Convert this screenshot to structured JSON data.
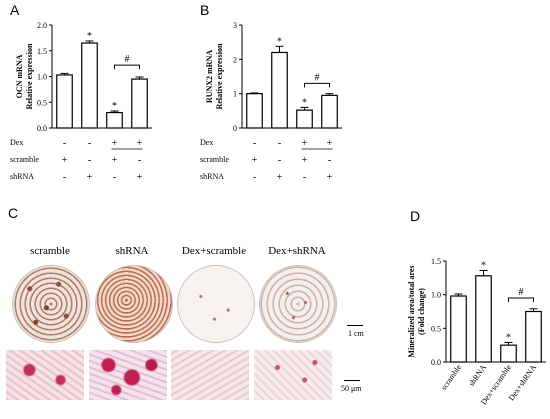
{
  "panels": {
    "a": "A",
    "b": "B",
    "c": "C",
    "d": "D"
  },
  "treatment_rows": [
    {
      "label": "Dex",
      "signs": [
        "-",
        "-",
        "+",
        "+"
      ]
    },
    {
      "label": "scramble",
      "signs": [
        "+",
        "-",
        "+",
        "-"
      ]
    },
    {
      "label": "shRNA",
      "signs": [
        "-",
        "+",
        "-",
        "+"
      ]
    }
  ],
  "photo_labels": [
    "scramble",
    "shRNA",
    "Dex+scramble",
    "Dex+shRNA"
  ],
  "scale_bars": {
    "well": "1 cm",
    "micro": "50 μm"
  },
  "chart_data": [
    {
      "type": "bar",
      "panel": "A",
      "ylabel_lines": [
        "OCN mRNA",
        "Relative expression"
      ],
      "ylim": [
        0,
        2.0
      ],
      "yticks": [
        "0.0",
        "0.5",
        "1.0",
        "1.5",
        "2.0"
      ],
      "values": [
        1.03,
        1.65,
        0.3,
        0.95
      ],
      "errors": [
        0.03,
        0.04,
        0.03,
        0.04
      ],
      "bar_colors": [
        "#ffffff",
        "#ffffff",
        "#ffffff",
        "#ffffff"
      ],
      "star_labels": [
        "",
        "*",
        "*",
        ""
      ],
      "bracket": {
        "from": 2,
        "to": 3,
        "label": "#",
        "y": 1.22
      }
    },
    {
      "type": "bar",
      "panel": "B",
      "ylabel_lines": [
        "RUNX2  mRNA",
        "Relative expression"
      ],
      "ylim": [
        0,
        3
      ],
      "yticks": [
        "0",
        "1",
        "2",
        "3"
      ],
      "values": [
        1.0,
        2.2,
        0.52,
        0.95
      ],
      "errors": [
        0.02,
        0.18,
        0.08,
        0.05
      ],
      "bar_colors": [
        "#ffffff",
        "#ffffff",
        "#ffffff",
        "#ffffff"
      ],
      "star_labels": [
        "",
        "*",
        "*",
        ""
      ],
      "bracket": {
        "from": 2,
        "to": 3,
        "label": "#",
        "y": 1.3
      }
    },
    {
      "type": "bar",
      "panel": "D",
      "ylabel_lines": [
        "Mineralized area/total ares",
        "(Fold change)"
      ],
      "ylim": [
        0,
        1.5
      ],
      "yticks": [
        "0.0",
        "0.5",
        "1.0",
        "1.5"
      ],
      "categories": [
        "scramble",
        "shRNA",
        "Dex+scramble",
        "Dex+shRNA"
      ],
      "values": [
        0.98,
        1.28,
        0.25,
        0.75
      ],
      "errors": [
        0.03,
        0.08,
        0.04,
        0.04
      ],
      "bar_colors": [
        "#ffffff",
        "#ffffff",
        "#ffffff",
        "#ffffff"
      ],
      "star_labels": [
        "",
        "*",
        "*",
        ""
      ],
      "bracket": {
        "from": 2,
        "to": 3,
        "label": "#",
        "y": 0.95
      }
    }
  ]
}
